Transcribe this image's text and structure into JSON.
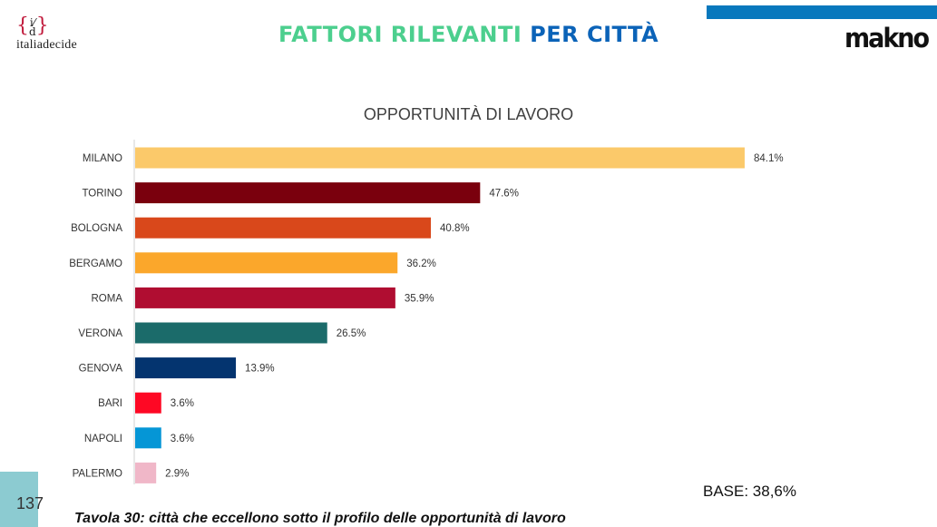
{
  "header": {
    "logo_left": {
      "mark_open": "{",
      "mark_top": "i",
      "mark_bottom": "d",
      "mark_close": "}",
      "name": "italiadecide"
    },
    "title_part1": "FATTORI RILEVANTI",
    "title_part2": "PER CITTÀ",
    "logo_right": "makno",
    "colors": {
      "title_part1": "#4ccf8e",
      "title_part2": "#0b63b8",
      "top_bar": "#0878bd"
    }
  },
  "footer": {
    "page_number": "137",
    "caption": "Tavola 30: città che eccellono sotto il profilo delle opportunità di lavoro",
    "base": "BASE: 38,6%"
  },
  "chart_data": {
    "type": "bar",
    "orientation": "horizontal",
    "title": "OPPORTUNITÀ DI LAVORO",
    "xlabel": "",
    "ylabel": "",
    "xlim": [
      0,
      100
    ],
    "grid": false,
    "categories": [
      "MILANO",
      "TORINO",
      "BOLOGNA",
      "BERGAMO",
      "ROMA",
      "VERONA",
      "GENOVA",
      "BARI",
      "NAPOLI",
      "PALERMO"
    ],
    "values": [
      84.1,
      47.6,
      40.8,
      36.2,
      35.9,
      26.5,
      13.9,
      3.6,
      3.6,
      2.9
    ],
    "labels": [
      "84.1%",
      "47.6%",
      "40.8%",
      "36.2%",
      "35.9%",
      "26.5%",
      "13.9%",
      "3.6%",
      "3.6%",
      "2.9%"
    ],
    "colors": [
      "#fbc96a",
      "#7a000d",
      "#d9481b",
      "#fba72b",
      "#b00d31",
      "#1b6b6a",
      "#04346f",
      "#fe0824",
      "#0596d6",
      "#f0b7c8"
    ]
  }
}
